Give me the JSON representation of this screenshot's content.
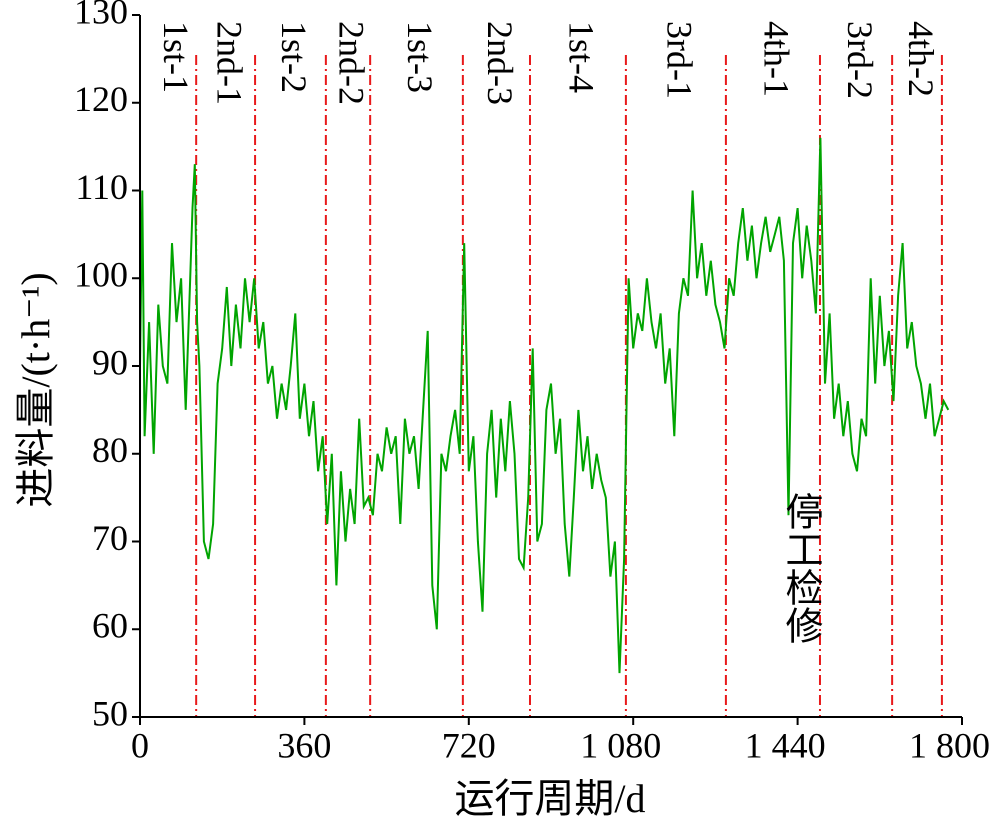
{
  "chart_data": {
    "type": "line",
    "x_label": "运行周期/d",
    "y_label": "进料量/(t·h⁻¹)",
    "xlim": [
      0,
      1800
    ],
    "ylim": [
      50,
      130
    ],
    "xticks": [
      0,
      360,
      720,
      {
        "value": 1080,
        "label": "1 080"
      },
      {
        "value": 1440,
        "label": "1 440"
      },
      {
        "value": 1800,
        "label": "1 800"
      }
    ],
    "yticks": [
      50,
      60,
      70,
      80,
      90,
      100,
      110,
      120,
      130
    ],
    "phase_lines": [
      123,
      252,
      407,
      504,
      707,
      854,
      1064,
      1283,
      1489,
      1647,
      1756
    ],
    "phase_line_color": "#e8191a",
    "phases": [
      "1st-1",
      "2nd-1",
      "1st-2",
      "2nd-2",
      "1st-3",
      "2nd-3",
      "1st-4",
      "3rd-1",
      "4th-1",
      "3rd-2",
      "4th-2"
    ],
    "annotation": "停工检修",
    "series": [
      {
        "color": "#00a400",
        "x": [
          0,
          5,
          10,
          20,
          30,
          40,
          50,
          60,
          70,
          80,
          90,
          100,
          110,
          115,
          120,
          125,
          130,
          140,
          150,
          160,
          170,
          180,
          190,
          200,
          210,
          220,
          230,
          240,
          250,
          260,
          270,
          280,
          290,
          300,
          310,
          320,
          330,
          340,
          350,
          360,
          370,
          380,
          390,
          400,
          410,
          420,
          430,
          440,
          450,
          460,
          470,
          480,
          490,
          500,
          510,
          520,
          530,
          540,
          550,
          560,
          570,
          580,
          590,
          600,
          610,
          620,
          630,
          640,
          650,
          660,
          670,
          680,
          690,
          700,
          710,
          720,
          730,
          740,
          750,
          760,
          770,
          780,
          790,
          800,
          810,
          820,
          830,
          840,
          850,
          860,
          870,
          880,
          890,
          900,
          910,
          920,
          930,
          940,
          950,
          960,
          970,
          980,
          990,
          1000,
          1010,
          1020,
          1030,
          1040,
          1050,
          1060,
          1070,
          1080,
          1090,
          1100,
          1110,
          1120,
          1130,
          1140,
          1150,
          1160,
          1170,
          1180,
          1190,
          1200,
          1210,
          1220,
          1230,
          1240,
          1250,
          1260,
          1270,
          1280,
          1290,
          1300,
          1310,
          1320,
          1330,
          1340,
          1350,
          1360,
          1370,
          1380,
          1390,
          1400,
          1410,
          1420,
          1430,
          1440,
          1450,
          1460,
          1470,
          1480,
          1490,
          1500,
          1510,
          1520,
          1530,
          1540,
          1550,
          1560,
          1570,
          1580,
          1590,
          1600,
          1610,
          1620,
          1630,
          1640,
          1650,
          1660,
          1670,
          1680,
          1690,
          1700,
          1710,
          1720,
          1730,
          1740,
          1750,
          1760,
          1770
        ],
        "values": [
          90,
          110,
          82,
          95,
          80,
          97,
          90,
          88,
          104,
          95,
          100,
          85,
          100,
          108,
          113,
          95,
          90,
          70,
          68,
          72,
          88,
          92,
          99,
          90,
          97,
          92,
          100,
          95,
          100,
          92,
          95,
          88,
          90,
          84,
          88,
          85,
          90,
          96,
          84,
          88,
          82,
          86,
          78,
          82,
          72,
          80,
          65,
          78,
          70,
          76,
          72,
          84,
          74,
          75,
          73,
          80,
          78,
          83,
          80,
          82,
          72,
          84,
          80,
          82,
          76,
          85,
          94,
          65,
          60,
          80,
          78,
          82,
          85,
          80,
          104,
          78,
          82,
          70,
          62,
          80,
          85,
          75,
          84,
          78,
          86,
          80,
          68,
          67,
          75,
          92,
          70,
          72,
          85,
          88,
          80,
          84,
          72,
          66,
          75,
          85,
          78,
          82,
          76,
          80,
          77,
          75,
          66,
          70,
          55,
          68,
          100,
          92,
          96,
          94,
          100,
          95,
          92,
          96,
          88,
          92,
          82,
          96,
          100,
          98,
          110,
          100,
          104,
          98,
          102,
          97,
          95,
          92,
          100,
          98,
          104,
          108,
          102,
          106,
          100,
          104,
          107,
          103,
          105,
          107,
          102,
          73,
          104,
          108,
          100,
          106,
          102,
          96,
          116,
          88,
          96,
          84,
          88,
          82,
          86,
          80,
          78,
          84,
          82,
          100,
          88,
          98,
          90,
          94,
          86,
          98,
          104,
          92,
          95,
          90,
          88,
          84,
          88,
          82,
          84,
          86,
          85
        ]
      }
    ]
  }
}
